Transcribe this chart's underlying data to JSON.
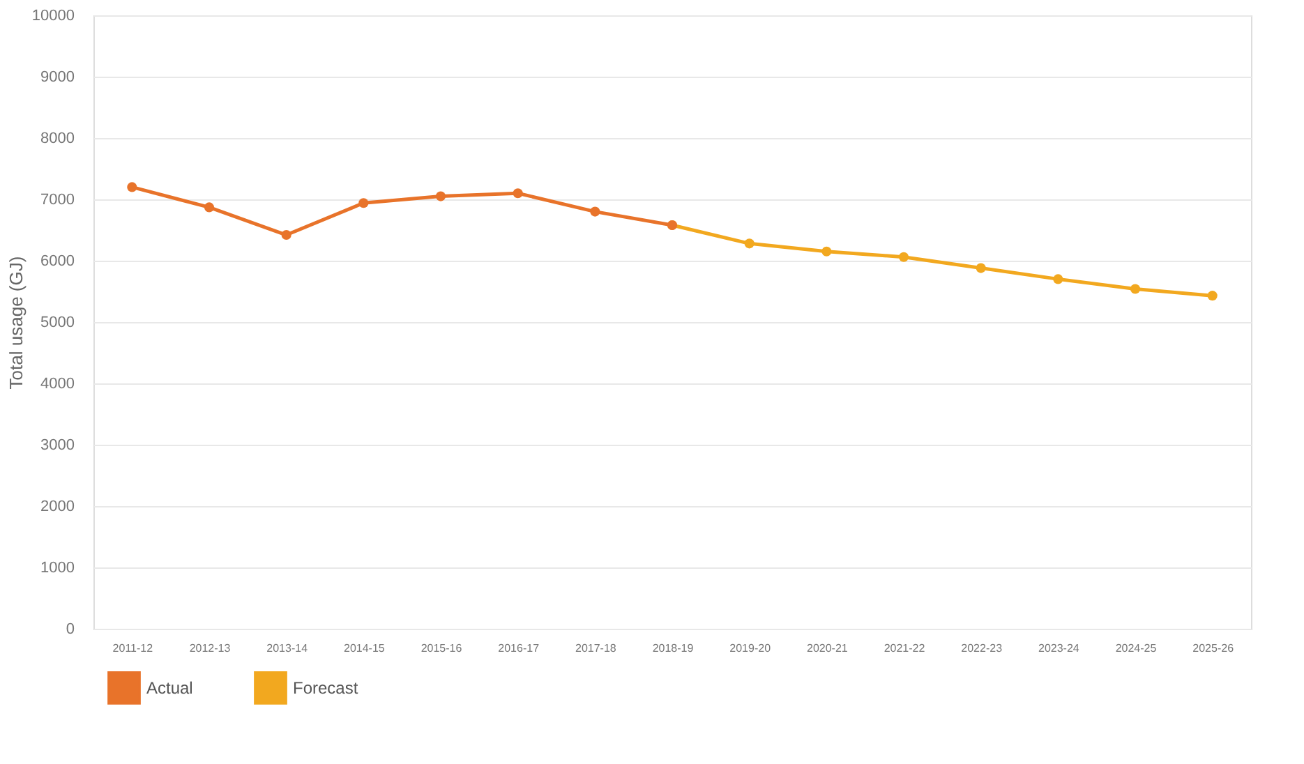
{
  "chart_data": {
    "type": "line",
    "ylabel": "Total usage (GJ)",
    "categories": [
      "2011-12",
      "2012-13",
      "2013-14",
      "2014-15",
      "2015-16",
      "2016-17",
      "2017-18",
      "2018-19",
      "2019-20",
      "2020-21",
      "2021-22",
      "2022-23",
      "2023-24",
      "2024-25",
      "2025-26"
    ],
    "series": [
      {
        "name": "Actual",
        "color": "#e8732a",
        "values": [
          7200,
          6870,
          6420,
          6940,
          7050,
          7100,
          6800,
          6580,
          null,
          null,
          null,
          null,
          null,
          null,
          null
        ]
      },
      {
        "name": "Forecast",
        "color": "#f2a81f",
        "values": [
          null,
          null,
          null,
          null,
          null,
          null,
          null,
          6580,
          6280,
          6150,
          6060,
          5880,
          5700,
          5540,
          5430
        ]
      }
    ],
    "ylim": [
      0,
      10000
    ],
    "yticks": [
      0,
      1000,
      2000,
      3000,
      4000,
      5000,
      6000,
      7000,
      8000,
      9000,
      10000
    ],
    "grid": "y",
    "legend": "bottom left",
    "marker": "circle",
    "line_style": "solid"
  }
}
